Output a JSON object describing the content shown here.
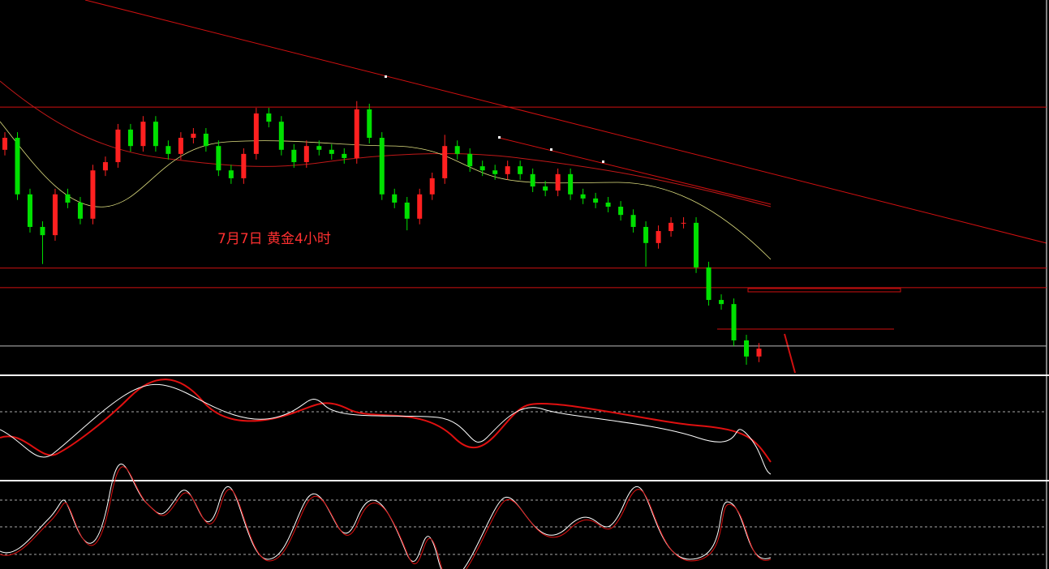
{
  "chart_data": {
    "type": "candlestick",
    "annotation": "7月7日 黄金4小时",
    "ylim": [
      0,
      100
    ],
    "up_color": "#ff2020",
    "down_color": "#00e000",
    "level_color": "#d01010",
    "open": [
      60.0,
      63.2,
      48.1,
      39.4,
      37.2,
      48.1,
      45.9,
      41.6,
      54.5,
      56.7,
      65.4,
      61.0,
      67.5,
      61.0,
      58.9,
      63.2,
      64.3,
      61.0,
      54.5,
      52.4,
      58.9,
      69.7,
      67.5,
      60.0,
      56.7,
      61.0,
      60.0,
      58.9,
      57.8,
      70.8,
      63.2,
      48.1,
      45.9,
      41.6,
      48.1,
      52.4,
      61.0,
      58.9,
      55.6,
      54.5,
      53.5,
      55.6,
      53.5,
      50.2,
      49.1,
      53.5,
      48.1,
      47.0,
      45.9,
      44.8,
      42.6,
      39.4,
      35.1,
      38.3,
      40.5,
      40.5,
      28.6,
      19.9,
      18.8,
      9.1,
      4.8
    ],
    "high": [
      64.7,
      64.7,
      49.6,
      40.9,
      49.6,
      49.6,
      47.4,
      56.0,
      58.2,
      66.9,
      66.9,
      69.0,
      69.0,
      62.5,
      64.7,
      65.8,
      65.8,
      62.5,
      56.0,
      60.4,
      71.2,
      71.2,
      69.0,
      61.5,
      62.5,
      62.5,
      61.5,
      60.4,
      73.0,
      72.3,
      64.7,
      49.6,
      47.4,
      49.6,
      53.9,
      64.0,
      62.5,
      60.4,
      57.1,
      56.0,
      57.1,
      57.1,
      55.0,
      51.7,
      55.0,
      55.0,
      49.6,
      48.5,
      47.4,
      46.3,
      44.1,
      40.9,
      39.8,
      42.0,
      42.0,
      42.0,
      30.1,
      21.4,
      20.3,
      10.6,
      8.4
    ],
    "low": [
      58.5,
      46.6,
      37.9,
      29.5,
      35.7,
      44.4,
      40.1,
      40.1,
      53.0,
      55.2,
      59.5,
      59.5,
      59.5,
      57.4,
      57.4,
      61.7,
      59.5,
      53.0,
      50.9,
      50.9,
      57.4,
      66.0,
      58.5,
      55.2,
      55.2,
      58.5,
      57.4,
      56.3,
      56.3,
      61.7,
      46.6,
      44.4,
      38.5,
      40.1,
      46.6,
      50.9,
      57.4,
      54.1,
      53.0,
      52.0,
      52.0,
      52.0,
      48.7,
      47.6,
      47.6,
      46.6,
      45.5,
      44.4,
      43.3,
      41.1,
      37.9,
      28.8,
      33.6,
      36.8,
      39.0,
      27.1,
      18.4,
      17.3,
      7.6,
      2.6,
      3.3
    ],
    "close": [
      63.2,
      48.1,
      39.4,
      37.2,
      48.1,
      45.9,
      41.6,
      54.5,
      56.7,
      65.4,
      61.0,
      67.5,
      61.0,
      58.9,
      63.2,
      64.3,
      61.0,
      54.5,
      52.4,
      58.9,
      69.7,
      67.5,
      60.0,
      56.7,
      61.0,
      60.0,
      58.9,
      57.8,
      70.8,
      63.2,
      48.1,
      45.9,
      41.6,
      48.1,
      52.4,
      61.0,
      58.9,
      55.6,
      54.5,
      53.5,
      55.6,
      53.5,
      50.2,
      49.1,
      53.5,
      48.1,
      47.0,
      45.9,
      44.8,
      42.6,
      39.4,
      35.1,
      38.3,
      40.5,
      40.5,
      28.6,
      19.9,
      18.8,
      9.1,
      4.8,
      6.9
    ],
    "levels": [
      71.4,
      28.4,
      23.2,
      7.6
    ]
  }
}
